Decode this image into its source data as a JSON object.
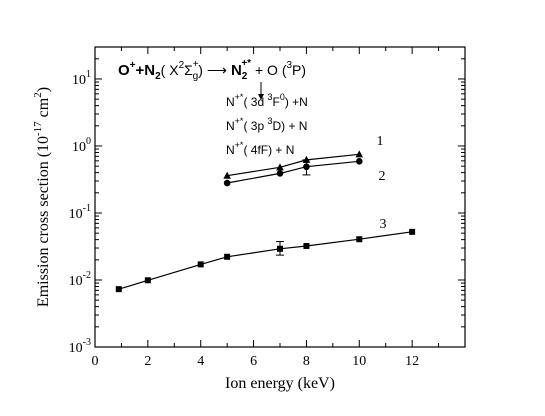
{
  "chart_data": {
    "type": "scatter",
    "title": "",
    "xlabel": "Ion energy (keV)",
    "ylabel": "Emission cross section (10",
    "ylabel_exp": "-17",
    "ylabel_unit": " cm",
    "ylabel_unit_exp": "2",
    "ylabel_close": ")",
    "xlim": [
      0,
      14
    ],
    "ylim": [
      0.001,
      30
    ],
    "yscale": "log",
    "xticks": [
      0,
      2,
      4,
      6,
      8,
      10,
      12
    ],
    "xtick_labels": [
      "0",
      "2",
      "4",
      "6",
      "8",
      "10",
      "12"
    ],
    "yticks": [
      0.001,
      0.01,
      0.1,
      1,
      10
    ],
    "ytick_base": "10",
    "ytick_exps": [
      "-3",
      "-2",
      "-1",
      "0",
      "1"
    ],
    "series": [
      {
        "name": "1",
        "marker": "triangle",
        "x": [
          5,
          7,
          8,
          10
        ],
        "y": [
          0.36,
          0.48,
          0.62,
          0.75
        ],
        "error_bars": []
      },
      {
        "name": "2",
        "marker": "circle",
        "x": [
          5,
          7,
          8,
          10
        ],
        "y": [
          0.28,
          0.39,
          0.49,
          0.59
        ],
        "error_bars": [
          {
            "x": 8,
            "low": 0.37,
            "high": 0.62
          }
        ]
      },
      {
        "name": "3",
        "marker": "square",
        "x": [
          0.9,
          2,
          4,
          5,
          7,
          8,
          10,
          12
        ],
        "y": [
          0.0073,
          0.0099,
          0.0171,
          0.0222,
          0.0292,
          0.0322,
          0.0406,
          0.0523
        ],
        "error_bars": [
          {
            "x": 7,
            "low": 0.0235,
            "high": 0.0375
          }
        ]
      }
    ],
    "annotations": {
      "reaction": {
        "o_plus": "O",
        "o_plus_sup": "+",
        "plus": "+N",
        "n2_sub": "2",
        "state_open": "( X",
        "state_sup": "2",
        "state_sigma": "Σ",
        "state_sub": "g",
        "state_sup2": "+",
        "state_close": ")",
        "arrow": "⟶",
        "n2": "N",
        "n2_sub2": "2",
        "n2_sup": "+*",
        "o_part": " + O (",
        "o_sup": "3",
        "o_state": "P)"
      },
      "channels": [
        {
          "base": "N",
          "sup": "+*",
          "mid": "( 3d ",
          "sup2": "3",
          "term": "F",
          "sup3": "0",
          "tail": ") +N"
        },
        {
          "base": "N",
          "sup": "+*",
          "mid": "( 3p ",
          "sup2": "3",
          "term": "D) + N",
          "sup3": "",
          "tail": ""
        },
        {
          "base": "N",
          "sup": "+*",
          "mid": "( 4fF) + N",
          "sup2": "",
          "term": "",
          "sup3": "",
          "tail": ""
        }
      ]
    }
  }
}
